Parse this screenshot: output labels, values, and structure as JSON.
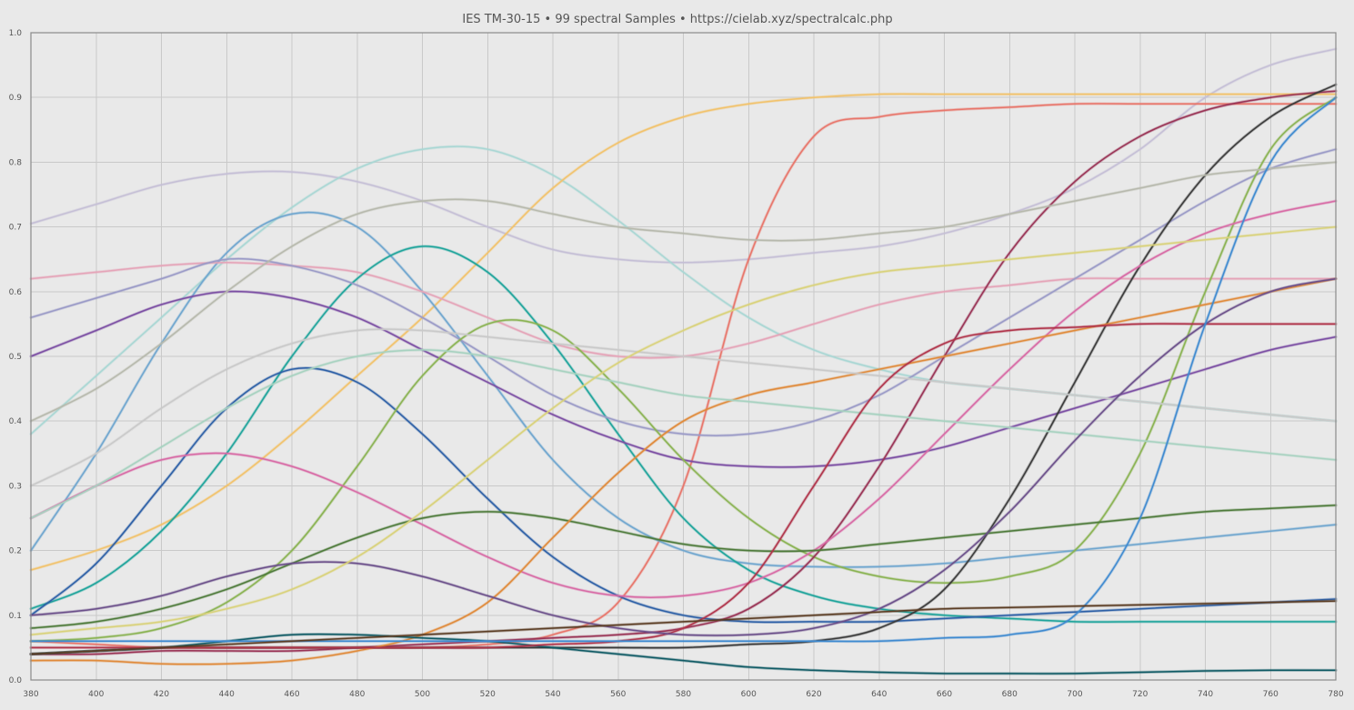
{
  "chart_data": {
    "type": "line",
    "title": "IES TM-30-15 • 99 spectral Samples • https://cielab.xyz/spectralcalc.php",
    "xlabel": "",
    "ylabel": "",
    "xlim": [
      380,
      780
    ],
    "ylim": [
      0,
      1.0
    ],
    "x_ticks": [
      "380",
      "400",
      "420",
      "440",
      "460",
      "480",
      "500",
      "520",
      "540",
      "560",
      "580",
      "600",
      "620",
      "640",
      "660",
      "680",
      "700",
      "720",
      "740",
      "760",
      "780"
    ],
    "y_ticks": [
      "0.0",
      "0.1",
      "0.2",
      "0.3",
      "0.4",
      "0.5",
      "0.6",
      "0.7",
      "0.8",
      "0.9",
      "1.0"
    ],
    "grid": true,
    "legend": "none",
    "x": [
      380,
      400,
      420,
      440,
      460,
      480,
      500,
      520,
      540,
      560,
      580,
      600,
      620,
      640,
      660,
      680,
      700,
      720,
      740,
      760,
      780
    ],
    "series": [
      {
        "color": "#c5bfd6",
        "values": [
          0.705,
          0.735,
          0.765,
          0.782,
          0.785,
          0.77,
          0.74,
          0.7,
          0.665,
          0.65,
          0.645,
          0.65,
          0.66,
          0.67,
          0.69,
          0.72,
          0.76,
          0.82,
          0.9,
          0.95,
          0.975
        ]
      },
      {
        "color": "#a9d7d4",
        "values": [
          0.38,
          0.47,
          0.56,
          0.65,
          0.73,
          0.79,
          0.82,
          0.82,
          0.78,
          0.71,
          0.63,
          0.56,
          0.51,
          0.48,
          0.46,
          0.45,
          0.44,
          0.43,
          0.42,
          0.41,
          0.4
        ]
      },
      {
        "color": "#f2c26b",
        "values": [
          0.17,
          0.2,
          0.24,
          0.3,
          0.38,
          0.47,
          0.56,
          0.66,
          0.76,
          0.83,
          0.87,
          0.89,
          0.9,
          0.905,
          0.905,
          0.905,
          0.905,
          0.905,
          0.905,
          0.905,
          0.905
        ]
      },
      {
        "color": "#e8756a",
        "values": [
          0.06,
          0.055,
          0.05,
          0.05,
          0.05,
          0.05,
          0.05,
          0.055,
          0.07,
          0.12,
          0.3,
          0.65,
          0.84,
          0.87,
          0.88,
          0.885,
          0.89,
          0.89,
          0.89,
          0.89,
          0.89
        ]
      },
      {
        "color": "#6fa6cf",
        "values": [
          0.2,
          0.35,
          0.52,
          0.66,
          0.72,
          0.7,
          0.6,
          0.47,
          0.34,
          0.25,
          0.2,
          0.18,
          0.175,
          0.175,
          0.18,
          0.19,
          0.2,
          0.21,
          0.22,
          0.23,
          0.24
        ]
      },
      {
        "color": "#e5a4b8",
        "values": [
          0.62,
          0.63,
          0.64,
          0.645,
          0.64,
          0.63,
          0.6,
          0.56,
          0.52,
          0.5,
          0.5,
          0.52,
          0.55,
          0.58,
          0.6,
          0.61,
          0.62,
          0.62,
          0.62,
          0.62,
          0.62
        ]
      },
      {
        "color": "#1ea49b",
        "values": [
          0.11,
          0.15,
          0.23,
          0.35,
          0.5,
          0.62,
          0.67,
          0.63,
          0.52,
          0.38,
          0.25,
          0.17,
          0.13,
          0.11,
          0.1,
          0.095,
          0.09,
          0.09,
          0.09,
          0.09,
          0.09
        ]
      },
      {
        "color": "#9a9ac7",
        "values": [
          0.56,
          0.59,
          0.62,
          0.65,
          0.64,
          0.61,
          0.56,
          0.5,
          0.44,
          0.4,
          0.38,
          0.38,
          0.4,
          0.44,
          0.5,
          0.56,
          0.62,
          0.68,
          0.74,
          0.79,
          0.82
        ]
      },
      {
        "color": "#7b4ea3",
        "values": [
          0.5,
          0.54,
          0.58,
          0.6,
          0.59,
          0.56,
          0.51,
          0.46,
          0.41,
          0.37,
          0.34,
          0.33,
          0.33,
          0.34,
          0.36,
          0.39,
          0.42,
          0.45,
          0.48,
          0.51,
          0.53
        ]
      },
      {
        "color": "#2c5fa6",
        "values": [
          0.1,
          0.18,
          0.3,
          0.42,
          0.48,
          0.46,
          0.38,
          0.28,
          0.19,
          0.13,
          0.1,
          0.09,
          0.09,
          0.09,
          0.095,
          0.1,
          0.105,
          0.11,
          0.115,
          0.12,
          0.125
        ]
      },
      {
        "color": "#8ab352",
        "values": [
          0.06,
          0.065,
          0.08,
          0.12,
          0.2,
          0.33,
          0.47,
          0.55,
          0.54,
          0.45,
          0.34,
          0.25,
          0.19,
          0.16,
          0.15,
          0.16,
          0.2,
          0.35,
          0.6,
          0.82,
          0.9
        ]
      },
      {
        "color": "#993355",
        "values": [
          0.04,
          0.04,
          0.045,
          0.045,
          0.045,
          0.05,
          0.055,
          0.06,
          0.065,
          0.07,
          0.08,
          0.11,
          0.19,
          0.33,
          0.5,
          0.66,
          0.77,
          0.84,
          0.88,
          0.9,
          0.91
        ]
      },
      {
        "color": "#3a3a3a",
        "values": [
          0.04,
          0.045,
          0.05,
          0.05,
          0.05,
          0.05,
          0.05,
          0.05,
          0.05,
          0.05,
          0.05,
          0.055,
          0.06,
          0.08,
          0.14,
          0.28,
          0.46,
          0.64,
          0.78,
          0.87,
          0.92
        ]
      },
      {
        "color": "#b7b9ad",
        "values": [
          0.4,
          0.45,
          0.52,
          0.6,
          0.67,
          0.72,
          0.74,
          0.74,
          0.72,
          0.7,
          0.69,
          0.68,
          0.68,
          0.69,
          0.7,
          0.72,
          0.74,
          0.76,
          0.78,
          0.79,
          0.8
        ]
      },
      {
        "color": "#d86aa5",
        "values": [
          0.25,
          0.3,
          0.34,
          0.35,
          0.33,
          0.29,
          0.24,
          0.19,
          0.15,
          0.13,
          0.13,
          0.15,
          0.2,
          0.28,
          0.38,
          0.48,
          0.57,
          0.64,
          0.69,
          0.72,
          0.74
        ]
      },
      {
        "color": "#4d7a3a",
        "values": [
          0.08,
          0.09,
          0.11,
          0.14,
          0.18,
          0.22,
          0.25,
          0.26,
          0.25,
          0.23,
          0.21,
          0.2,
          0.2,
          0.21,
          0.22,
          0.23,
          0.24,
          0.25,
          0.26,
          0.265,
          0.27
        ]
      },
      {
        "color": "#e08a3a",
        "values": [
          0.03,
          0.03,
          0.025,
          0.025,
          0.03,
          0.045,
          0.07,
          0.12,
          0.22,
          0.32,
          0.4,
          0.44,
          0.46,
          0.48,
          0.5,
          0.52,
          0.54,
          0.56,
          0.58,
          0.6,
          0.62
        ]
      },
      {
        "color": "#0f5a64",
        "values": [
          0.04,
          0.045,
          0.05,
          0.06,
          0.07,
          0.07,
          0.065,
          0.06,
          0.05,
          0.04,
          0.03,
          0.02,
          0.015,
          0.012,
          0.01,
          0.01,
          0.01,
          0.012,
          0.014,
          0.015,
          0.015
        ]
      },
      {
        "color": "#c9c9c9",
        "values": [
          0.3,
          0.35,
          0.42,
          0.48,
          0.52,
          0.54,
          0.54,
          0.53,
          0.52,
          0.51,
          0.5,
          0.49,
          0.48,
          0.47,
          0.46,
          0.45,
          0.44,
          0.43,
          0.42,
          0.41,
          0.4
        ]
      },
      {
        "color": "#a7d2c0",
        "values": [
          0.25,
          0.3,
          0.36,
          0.42,
          0.47,
          0.5,
          0.51,
          0.5,
          0.48,
          0.46,
          0.44,
          0.43,
          0.42,
          0.41,
          0.4,
          0.39,
          0.38,
          0.37,
          0.36,
          0.35,
          0.34
        ]
      },
      {
        "color": "#b0344a",
        "values": [
          0.05,
          0.05,
          0.05,
          0.05,
          0.05,
          0.05,
          0.05,
          0.05,
          0.055,
          0.06,
          0.08,
          0.15,
          0.3,
          0.45,
          0.52,
          0.54,
          0.545,
          0.55,
          0.55,
          0.55,
          0.55
        ]
      },
      {
        "color": "#6b4f8a",
        "values": [
          0.1,
          0.11,
          0.13,
          0.16,
          0.18,
          0.18,
          0.16,
          0.13,
          0.1,
          0.08,
          0.07,
          0.07,
          0.08,
          0.11,
          0.17,
          0.26,
          0.37,
          0.47,
          0.55,
          0.6,
          0.62
        ]
      },
      {
        "color": "#d9d27a",
        "values": [
          0.07,
          0.08,
          0.09,
          0.11,
          0.14,
          0.19,
          0.26,
          0.34,
          0.42,
          0.49,
          0.54,
          0.58,
          0.61,
          0.63,
          0.64,
          0.65,
          0.66,
          0.67,
          0.68,
          0.69,
          0.7
        ]
      },
      {
        "color": "#3e8ad0",
        "values": [
          0.06,
          0.06,
          0.06,
          0.06,
          0.06,
          0.06,
          0.06,
          0.06,
          0.06,
          0.06,
          0.06,
          0.06,
          0.06,
          0.06,
          0.065,
          0.07,
          0.1,
          0.25,
          0.55,
          0.8,
          0.9
        ]
      },
      {
        "color": "#5b3d24",
        "values": [
          0.04,
          0.045,
          0.05,
          0.055,
          0.06,
          0.065,
          0.07,
          0.075,
          0.08,
          0.085,
          0.09,
          0.095,
          0.1,
          0.105,
          0.11,
          0.112,
          0.114,
          0.116,
          0.118,
          0.12,
          0.122
        ]
      }
    ]
  }
}
